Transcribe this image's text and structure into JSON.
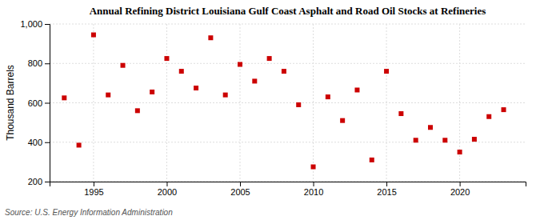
{
  "chart_data": {
    "type": "scatter",
    "title": "Annual Refining District Louisiana Gulf Coast Asphalt and Road Oil Stocks at Refineries",
    "ylabel": "Thousand Barrels",
    "source": "Source: U.S. Energy Information Administration",
    "x": [
      1993,
      1994,
      1995,
      1996,
      1997,
      1998,
      1999,
      2000,
      2001,
      2002,
      2003,
      2004,
      2005,
      2006,
      2007,
      2008,
      2009,
      2010,
      2011,
      2012,
      2013,
      2014,
      2015,
      2016,
      2017,
      2018,
      2019,
      2020,
      2021,
      2022,
      2023
    ],
    "values": [
      625,
      385,
      945,
      640,
      790,
      560,
      655,
      825,
      760,
      675,
      930,
      640,
      795,
      710,
      825,
      760,
      590,
      275,
      630,
      510,
      665,
      310,
      760,
      545,
      410,
      475,
      410,
      350,
      415,
      530,
      565
    ],
    "color": "#cc0000",
    "marker": "square",
    "xlim": [
      1992,
      2024.5
    ],
    "ylim": [
      200,
      1000
    ],
    "xticks": [
      1995,
      2000,
      2005,
      2010,
      2015,
      2020
    ],
    "yticks": [
      200,
      400,
      600,
      800,
      {
        "value": 1000,
        "label": "1,000"
      }
    ],
    "grid": true
  }
}
